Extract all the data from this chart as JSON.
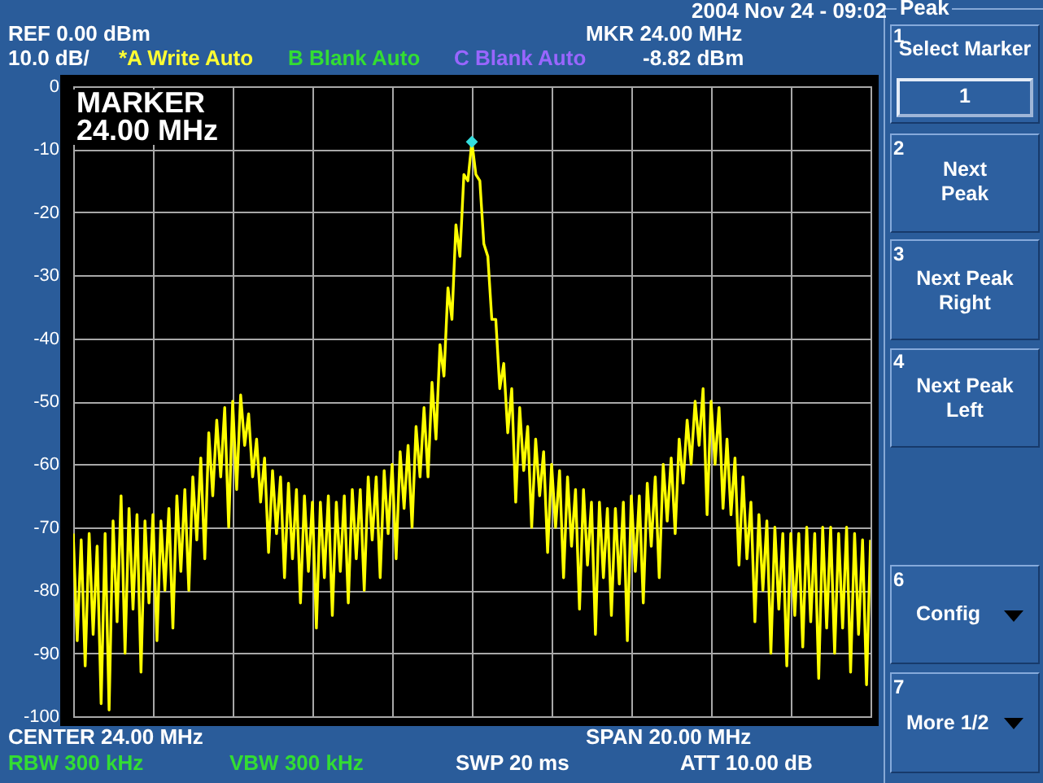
{
  "chart_data": {
    "type": "line",
    "categories": [
      null,
      null,
      null,
      null,
      null,
      null,
      null,
      null,
      null,
      null,
      null,
      null,
      null,
      null,
      null,
      null,
      null,
      null,
      null,
      null,
      null,
      null,
      null,
      null,
      null,
      null,
      null,
      null,
      null,
      null,
      null,
      null,
      null,
      null,
      null,
      null,
      null,
      null,
      null,
      null,
      null,
      null,
      null,
      null,
      null,
      null,
      null,
      null,
      null,
      null,
      null,
      null,
      null,
      null,
      null,
      null,
      null,
      null,
      null,
      null,
      null,
      null,
      null,
      null,
      null,
      null,
      null,
      null,
      null,
      null,
      null,
      null,
      null,
      null,
      null,
      null,
      null,
      null,
      null,
      null,
      null,
      null,
      null,
      null,
      null,
      null,
      null,
      null,
      null,
      null,
      null,
      null,
      null,
      null,
      null,
      null,
      null,
      null,
      null,
      null,
      null,
      null,
      null,
      null,
      null,
      null,
      null,
      null,
      null,
      null,
      null,
      null,
      null,
      null,
      null,
      null,
      null,
      null,
      null,
      null,
      null,
      null,
      null,
      null,
      null,
      null,
      null,
      null,
      null,
      null,
      null,
      null,
      null,
      null,
      null,
      null,
      null,
      null,
      null,
      null,
      null,
      null,
      null,
      null,
      null,
      null,
      null,
      null,
      null,
      null,
      null,
      null,
      null,
      null,
      null,
      null,
      null,
      null,
      null,
      null,
      null,
      null,
      null,
      null,
      null,
      null,
      null,
      null,
      null,
      null,
      null,
      null,
      null,
      null,
      null,
      null,
      null,
      null,
      null,
      null,
      null,
      null,
      null,
      null,
      null,
      null,
      null,
      null,
      null,
      null,
      null,
      null,
      null,
      null,
      null,
      null,
      null,
      null,
      null,
      null,
      null
    ],
    "ylim": [
      -100,
      0
    ],
    "yticks": [
      -100,
      -90,
      -80,
      -70,
      -60,
      -50,
      -40,
      -30,
      -20,
      -10,
      0
    ],
    "grid": true,
    "tick_labels": "y",
    "series": [
      {
        "color": "#ffff00",
        "values": [
          -71,
          -88,
          -72,
          -92,
          -71,
          -87,
          -73,
          -98,
          -71,
          -99,
          -69,
          -85,
          -65,
          -90,
          -67,
          -83,
          -68,
          -93,
          -69,
          -82,
          -68,
          -88,
          -69,
          -80,
          -67,
          -86,
          -65,
          -77,
          -64,
          -80,
          -62,
          -72,
          -59,
          -75,
          -55,
          -65,
          -53,
          -62,
          -51,
          -70,
          -50,
          -64,
          -49,
          -57,
          -52,
          -62,
          -56,
          -66,
          -59,
          -74,
          -61,
          -71,
          -62,
          -78,
          -63,
          -75,
          -64,
          -82,
          -65,
          -77,
          -66,
          -86,
          -66,
          -78,
          -65,
          -84,
          -66,
          -77,
          -65,
          -82,
          -64,
          -75,
          -64,
          -80,
          -62,
          -72,
          -62,
          -78,
          -61,
          -71,
          -60,
          -75,
          -58,
          -67,
          -57,
          -70,
          -54,
          -62,
          -51,
          -62,
          -47,
          -56,
          -41,
          -46,
          -32,
          -37,
          -22,
          -27,
          -14,
          -15,
          -8.82,
          -14,
          -15,
          -25,
          -27,
          -37,
          -37,
          -48,
          -44,
          -55,
          -48,
          -66,
          -51,
          -61,
          -54,
          -70,
          -56,
          -65,
          -58,
          -74,
          -60,
          -70,
          -61,
          -78,
          -62,
          -73,
          -64,
          -83,
          -64,
          -76,
          -66,
          -87,
          -66,
          -78,
          -67,
          -84,
          -67,
          -79,
          -66,
          -88,
          -65,
          -77,
          -65,
          -82,
          -63,
          -73,
          -62,
          -78,
          -60,
          -69,
          -59,
          -71,
          -56,
          -63,
          -53,
          -60,
          -50,
          -57,
          -48,
          -68,
          -50,
          -60,
          -51,
          -67,
          -56,
          -68,
          -59,
          -76,
          -62,
          -75,
          -66,
          -85,
          -68,
          -80,
          -69,
          -90,
          -70,
          -83,
          -71,
          -92,
          -71,
          -84,
          -71,
          -89,
          -70,
          -85,
          -71,
          -94,
          -70,
          -86,
          -70,
          -90,
          -71,
          -86,
          -70,
          -93,
          -71,
          -87,
          -72,
          -95,
          -72
        ]
      },
      {
        "type": "scatter",
        "color": "#33dddd",
        "marker": "diamond",
        "values": [
          null,
          null,
          null,
          null,
          null,
          null,
          null,
          null,
          null,
          null,
          null,
          null,
          null,
          null,
          null,
          null,
          null,
          null,
          null,
          null,
          null,
          null,
          null,
          null,
          null,
          null,
          null,
          null,
          null,
          null,
          null,
          null,
          null,
          null,
          null,
          null,
          null,
          null,
          null,
          null,
          null,
          null,
          null,
          null,
          null,
          null,
          null,
          null,
          null,
          null,
          null,
          null,
          null,
          null,
          null,
          null,
          null,
          null,
          null,
          null,
          null,
          null,
          null,
          null,
          null,
          null,
          null,
          null,
          null,
          null,
          null,
          null,
          null,
          null,
          null,
          null,
          null,
          null,
          null,
          null,
          null,
          null,
          null,
          null,
          null,
          null,
          null,
          null,
          null,
          null,
          null,
          null,
          null,
          null,
          null,
          null,
          null,
          null,
          null,
          null,
          -8.82,
          null,
          null,
          null,
          null,
          null,
          null,
          null,
          null,
          null,
          null,
          null,
          null,
          null,
          null,
          null,
          null,
          null,
          null,
          null,
          null,
          null,
          null,
          null,
          null,
          null,
          null,
          null,
          null,
          null,
          null,
          null,
          null,
          null,
          null,
          null,
          null,
          null,
          null,
          null,
          null,
          null,
          null,
          null,
          null,
          null,
          null,
          null,
          null,
          null,
          null,
          null,
          null,
          null,
          null,
          null,
          null,
          null,
          null,
          null,
          null,
          null,
          null,
          null,
          null,
          null,
          null,
          null,
          null,
          null,
          null,
          null,
          null,
          null,
          null,
          null,
          null,
          null,
          null,
          null,
          null,
          null,
          null,
          null,
          null,
          null,
          null,
          null,
          null,
          null,
          null,
          null,
          null,
          null,
          null,
          null,
          null,
          null,
          null,
          null,
          null
        ]
      }
    ],
    "annotations": [
      "REF 0.00 dBm",
      "10.0 dB/",
      "*A Write Auto",
      "B Blank Auto",
      "C Blank Auto",
      "MKR 24.00 MHz",
      "-8.82 dBm",
      "2004 Nov 24 - 09:02",
      "MARKER",
      "24.00 MHz",
      "CENTER 24.00 MHz",
      "SPAN 20.00 MHz",
      "RBW  300 kHz",
      "VBW  300 kHz",
      "SWP  20 ms",
      "ATT 10.00 dB",
      "Peak",
      "1",
      "Select Marker",
      "1",
      "2",
      "Next Peak",
      "3",
      "Next Peak Right",
      "4",
      "Next Peak Left",
      "6",
      "Config",
      "7",
      "More 1/2"
    ]
  }
}
